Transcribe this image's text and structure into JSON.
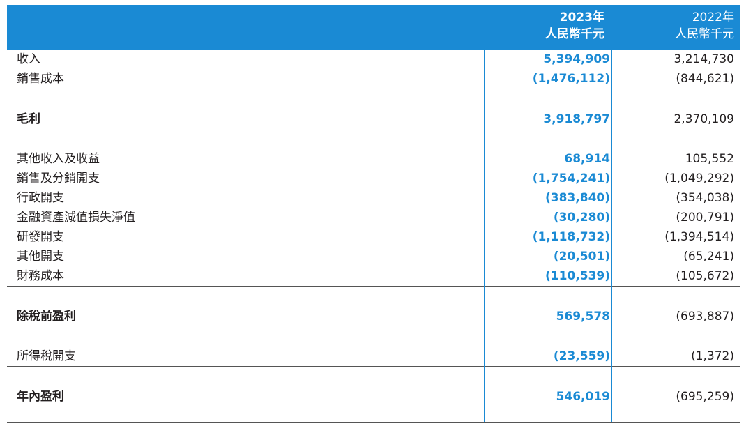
{
  "header": {
    "col2023_year": "2023年",
    "col2023_unit": "人民幣千元",
    "col2022_year": "2022年",
    "col2022_unit": "人民幣千元"
  },
  "rows": [
    {
      "label": "收入",
      "v2023": "5,394,909",
      "v2022": "3,214,730"
    },
    {
      "label": "銷售成本",
      "v2023": "(1,476,112)",
      "v2022": "(844,621)"
    },
    {
      "label": "毛利",
      "v2023": "3,918,797",
      "v2022": "2,370,109"
    },
    {
      "label": "其他收入及收益",
      "v2023": "68,914",
      "v2022": "105,552"
    },
    {
      "label": "銷售及分銷開支",
      "v2023": "(1,754,241)",
      "v2022": "(1,049,292)"
    },
    {
      "label": "行政開支",
      "v2023": "(383,840)",
      "v2022": "(354,038)"
    },
    {
      "label": "金融資產減值損失淨值",
      "v2023": "(30,280)",
      "v2022": "(200,791)"
    },
    {
      "label": "研發開支",
      "v2023": "(1,118,732)",
      "v2022": "(1,394,514)"
    },
    {
      "label": "其他開支",
      "v2023": "(20,501)",
      "v2022": "(65,241)"
    },
    {
      "label": "財務成本",
      "v2023": "(110,539)",
      "v2022": "(105,672)"
    },
    {
      "label": "除稅前盈利",
      "v2023": "569,578",
      "v2022": "(693,887)"
    },
    {
      "label": "所得稅開支",
      "v2023": "(23,559)",
      "v2022": "(1,372)"
    },
    {
      "label": "年內盈利",
      "v2023": "546,019",
      "v2022": "(695,259)"
    }
  ],
  "colors": {
    "accent": "#1a8ad4",
    "header_text": "#ffffff"
  }
}
